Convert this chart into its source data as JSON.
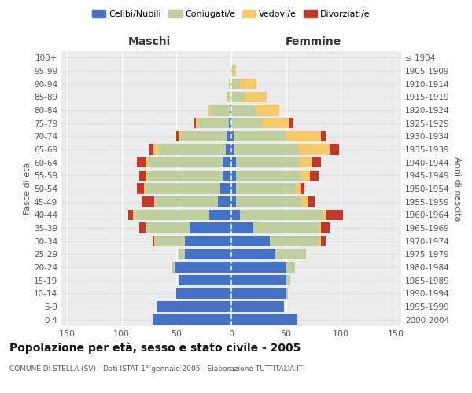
{
  "age_groups": [
    "0-4",
    "5-9",
    "10-14",
    "15-19",
    "20-24",
    "25-29",
    "30-34",
    "35-39",
    "40-44",
    "45-49",
    "50-54",
    "55-59",
    "60-64",
    "65-69",
    "70-74",
    "75-79",
    "80-84",
    "85-89",
    "90-94",
    "95-99",
    "100+"
  ],
  "birth_years": [
    "2000-2004",
    "1995-1999",
    "1990-1994",
    "1985-1989",
    "1980-1984",
    "1975-1979",
    "1970-1974",
    "1965-1969",
    "1960-1964",
    "1955-1959",
    "1950-1954",
    "1945-1949",
    "1940-1944",
    "1935-1939",
    "1930-1934",
    "1925-1929",
    "1920-1924",
    "1915-1919",
    "1910-1914",
    "1905-1909",
    "≤ 1904"
  ],
  "maschi": {
    "celibi": [
      72,
      68,
      50,
      48,
      52,
      42,
      42,
      38,
      20,
      12,
      10,
      8,
      8,
      5,
      4,
      2,
      1,
      0,
      0,
      0,
      0
    ],
    "coniugati": [
      0,
      0,
      0,
      0,
      2,
      6,
      28,
      40,
      68,
      58,
      68,
      68,
      68,
      62,
      42,
      28,
      18,
      4,
      2,
      0,
      0
    ],
    "vedovi": [
      0,
      0,
      0,
      0,
      0,
      0,
      0,
      0,
      2,
      0,
      2,
      2,
      2,
      4,
      2,
      2,
      2,
      0,
      0,
      0,
      0
    ],
    "divorziati": [
      0,
      0,
      0,
      0,
      0,
      0,
      2,
      6,
      4,
      12,
      6,
      6,
      8,
      4,
      2,
      2,
      0,
      0,
      0,
      0,
      0
    ]
  },
  "femmine": {
    "nubili": [
      60,
      48,
      50,
      50,
      50,
      40,
      35,
      20,
      8,
      4,
      4,
      4,
      4,
      2,
      2,
      0,
      0,
      0,
      0,
      0,
      0
    ],
    "coniugate": [
      0,
      0,
      2,
      4,
      8,
      28,
      45,
      60,
      75,
      60,
      55,
      60,
      58,
      60,
      48,
      28,
      22,
      12,
      8,
      2,
      0
    ],
    "vedove": [
      0,
      0,
      0,
      0,
      0,
      0,
      2,
      2,
      4,
      6,
      4,
      8,
      12,
      28,
      32,
      25,
      22,
      20,
      15,
      2,
      0
    ],
    "divorziate": [
      0,
      0,
      0,
      0,
      0,
      0,
      4,
      8,
      15,
      6,
      4,
      8,
      8,
      8,
      4,
      4,
      0,
      0,
      0,
      0,
      0
    ]
  },
  "colors": {
    "celibi_nubili": "#4472C4",
    "coniugati": "#BFCE9E",
    "vedovi": "#F5C96A",
    "divorziati": "#C0392B"
  },
  "xlim": 155,
  "title": "Popolazione per età, sesso e stato civile - 2005",
  "subtitle": "COMUNE DI STELLA (SV) - Dati ISTAT 1° gennaio 2005 - Elaborazione TUTTITALIA.IT",
  "xlabel_left": "Maschi",
  "xlabel_right": "Femmine",
  "ylabel_left": "Fasce di età",
  "ylabel_right": "Anni di nascita",
  "legend_labels": [
    "Celibi/Nubili",
    "Coniugati/e",
    "Vedovi/e",
    "Divorziati/e"
  ],
  "bg_color": "#ffffff",
  "plot_bg": "#ebebeb"
}
